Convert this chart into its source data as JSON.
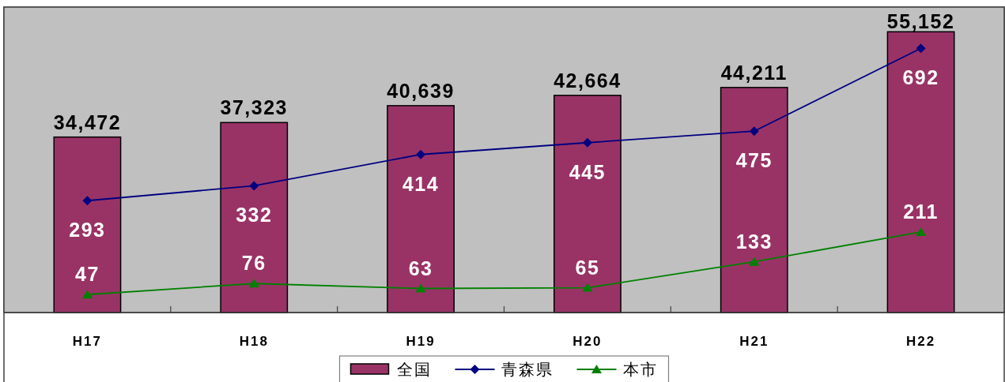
{
  "chart_data": {
    "type": "bar",
    "categories": [
      "H17",
      "H18",
      "H19",
      "H20",
      "H21",
      "H22"
    ],
    "series": [
      {
        "name": "全国",
        "color": "#993366",
        "values": [
          34472,
          37323,
          40639,
          42664,
          44211,
          55152
        ],
        "value_labels": [
          "34,472",
          "37,323",
          "40,639",
          "42,664",
          "44,211",
          "55,152"
        ]
      },
      {
        "name": "青森県",
        "type": "line",
        "color": "#000080",
        "marker": "diamond",
        "axis": "y2",
        "values": [
          293,
          332,
          414,
          445,
          475,
          692
        ],
        "value_labels": [
          "293",
          "332",
          "414",
          "445",
          "475",
          "692"
        ]
      },
      {
        "name": "本市",
        "type": "line",
        "color": "#008000",
        "marker": "triangle",
        "axis": "y2",
        "values": [
          47,
          76,
          63,
          65,
          133,
          211
        ],
        "value_labels": [
          "47",
          "76",
          "63",
          "65",
          "133",
          "211"
        ]
      }
    ],
    "ylim": [
      0,
      60000
    ],
    "y2lim": [
      0,
      800
    ],
    "tick_labels": "x",
    "legend": "bottom"
  }
}
